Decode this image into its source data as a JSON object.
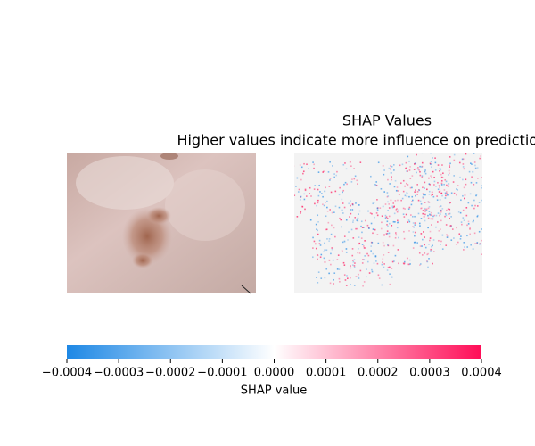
{
  "chart_data": {
    "type": "colorbar",
    "title": "SHAP Values",
    "subtitle": "Higher values indicate more influence on predictions",
    "xlabel": "SHAP value",
    "xlim": [
      -0.0004,
      0.0004
    ],
    "xticks": [
      {
        "value": -0.0004,
        "label": "−0.0004"
      },
      {
        "value": -0.0003,
        "label": "−0.0003"
      },
      {
        "value": -0.0002,
        "label": "−0.0002"
      },
      {
        "value": -0.0001,
        "label": "−0.0001"
      },
      {
        "value": 0,
        "label": "0.0000"
      },
      {
        "value": 0.0001,
        "label": "0.0001"
      },
      {
        "value": 0.0002,
        "label": "0.0002"
      },
      {
        "value": 0.0003,
        "label": "0.0003"
      },
      {
        "value": 0.0004,
        "label": "0.0004"
      }
    ],
    "colors": [
      "#1e88e5",
      "#ffffff",
      "#ff0d57"
    ]
  }
}
